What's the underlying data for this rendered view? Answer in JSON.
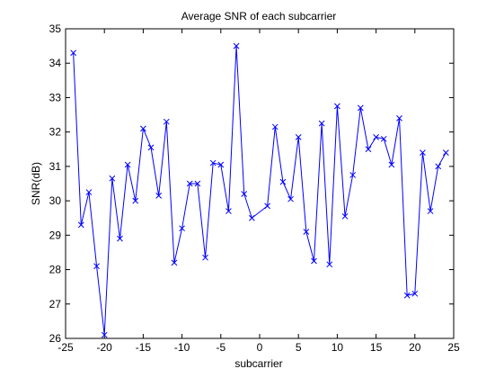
{
  "chart_data": {
    "type": "line",
    "title": "Average SNR of each subcarrier",
    "xlabel": "subcarrier",
    "ylabel": "SNR(dB)",
    "xlim": [
      -25,
      25
    ],
    "ylim": [
      26,
      35
    ],
    "xticks": [
      -25,
      -20,
      -15,
      -10,
      -5,
      0,
      5,
      10,
      15,
      20,
      25
    ],
    "yticks": [
      26,
      27,
      28,
      29,
      30,
      31,
      32,
      33,
      34,
      35
    ],
    "grid": false,
    "line_color": "#0000ff",
    "marker": "x",
    "series": [
      {
        "x": [
          -24,
          -23,
          -22,
          -21,
          -20,
          -19,
          -18,
          -17,
          -16,
          -15,
          -14,
          -13,
          -12,
          -11,
          -10,
          -9,
          -8,
          -7,
          -6,
          -5,
          -4,
          -3,
          -2,
          -1,
          1,
          2,
          3,
          4,
          5,
          6,
          7,
          8,
          9,
          10,
          11,
          12,
          13,
          14,
          15,
          16,
          17,
          18,
          19,
          20,
          21,
          22,
          23,
          24
        ],
        "values": [
          34.3,
          29.3,
          30.25,
          28.1,
          26.1,
          30.65,
          28.9,
          31.05,
          30.0,
          32.1,
          31.55,
          30.15,
          32.3,
          28.2,
          29.2,
          30.5,
          30.5,
          28.35,
          31.1,
          31.05,
          29.7,
          34.5,
          30.2,
          29.5,
          29.85,
          32.15,
          30.55,
          30.05,
          31.85,
          29.1,
          28.25,
          32.25,
          28.15,
          32.75,
          29.55,
          30.75,
          32.7,
          31.5,
          31.85,
          31.8,
          31.05,
          32.4,
          27.25,
          27.3,
          31.4,
          29.7,
          31.0,
          31.4
        ]
      }
    ]
  }
}
